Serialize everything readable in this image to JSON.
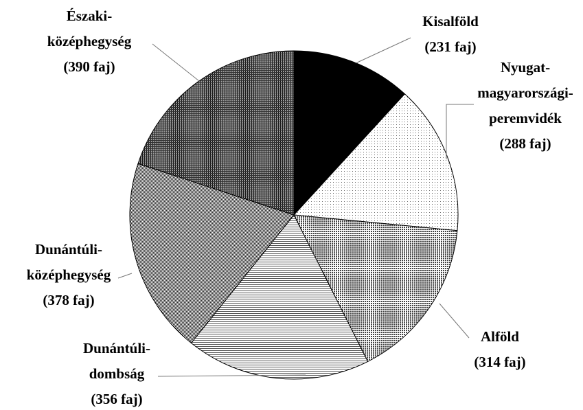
{
  "chart_data": {
    "type": "pie",
    "categories": [
      [
        "Kisalföld"
      ],
      [
        "Nyugat-",
        "magyarországi-",
        "peremvidék"
      ],
      [
        "Alföld"
      ],
      [
        "Dunántúli-",
        "dombság"
      ],
      [
        "Dunántúli-",
        "középhegység"
      ],
      [
        "Északi-",
        "középhegység"
      ]
    ],
    "values": [
      231,
      288,
      314,
      356,
      378,
      390
    ],
    "value_labels": [
      "(231 faj)",
      "(288 faj)",
      "(314 faj)",
      "(356 faj)",
      "(378 faj)",
      "(390 faj)"
    ]
  }
}
